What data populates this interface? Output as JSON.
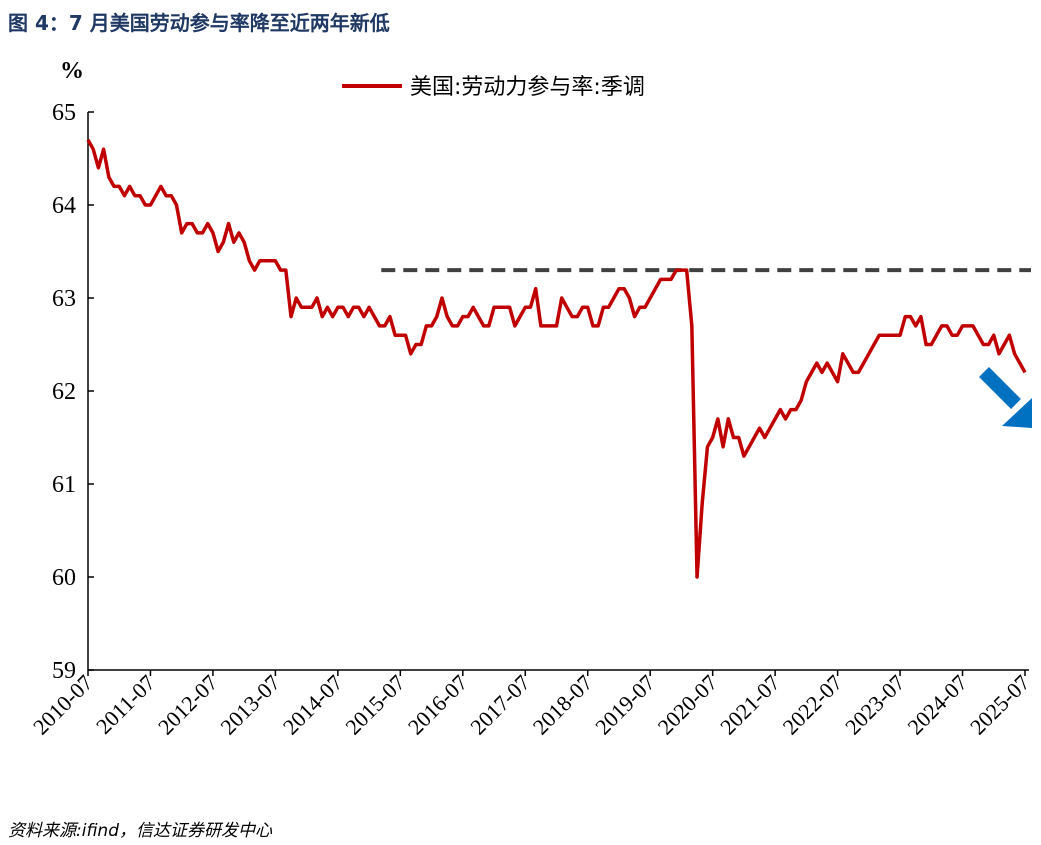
{
  "chart_data": {
    "type": "line",
    "title": "图 4：7 月美国劳动参与率降至近两年新低",
    "y_unit": "%",
    "source": "资料来源:ifind，信达证券研发中心",
    "categories": [
      "2010-07",
      null,
      null,
      null,
      null,
      null,
      null,
      null,
      null,
      null,
      null,
      null,
      "2011-07",
      null,
      null,
      null,
      null,
      null,
      null,
      null,
      null,
      null,
      null,
      null,
      "2012-07",
      null,
      null,
      null,
      null,
      null,
      null,
      null,
      null,
      null,
      null,
      null,
      "2013-07",
      null,
      null,
      null,
      null,
      null,
      null,
      null,
      null,
      null,
      null,
      null,
      "2014-07",
      null,
      null,
      null,
      null,
      null,
      null,
      null,
      null,
      null,
      null,
      null,
      "2015-07",
      null,
      null,
      null,
      null,
      null,
      null,
      null,
      null,
      null,
      null,
      null,
      "2016-07",
      null,
      null,
      null,
      null,
      null,
      null,
      null,
      null,
      null,
      null,
      null,
      "2017-07",
      null,
      null,
      null,
      null,
      null,
      null,
      null,
      null,
      null,
      null,
      null,
      "2018-07",
      null,
      null,
      null,
      null,
      null,
      null,
      null,
      null,
      null,
      null,
      null,
      "2019-07",
      null,
      null,
      null,
      null,
      null,
      null,
      null,
      null,
      null,
      null,
      null,
      "2020-07",
      null,
      null,
      null,
      null,
      null,
      null,
      null,
      null,
      null,
      null,
      null,
      "2021-07",
      null,
      null,
      null,
      null,
      null,
      null,
      null,
      null,
      null,
      null,
      null,
      "2022-07",
      null,
      null,
      null,
      null,
      null,
      null,
      null,
      null,
      null,
      null,
      null,
      "2023-07",
      null,
      null,
      null,
      null,
      null,
      null,
      null,
      null,
      null,
      null,
      null,
      "2024-07",
      null,
      null,
      null,
      null,
      null,
      null,
      null,
      null,
      null,
      null,
      null,
      "2025-07"
    ],
    "series": [
      {
        "name": "美国:劳动力参与率:季调",
        "color": "#c00000",
        "values": [
          64.7,
          64.6,
          64.4,
          64.6,
          64.3,
          64.2,
          64.2,
          64.1,
          64.2,
          64.1,
          64.1,
          64.0,
          64.0,
          64.1,
          64.2,
          64.1,
          64.1,
          64.0,
          63.7,
          63.8,
          63.8,
          63.7,
          63.7,
          63.8,
          63.7,
          63.5,
          63.6,
          63.8,
          63.6,
          63.7,
          63.6,
          63.4,
          63.3,
          63.4,
          63.4,
          63.4,
          63.4,
          63.3,
          63.3,
          62.8,
          63.0,
          62.9,
          62.9,
          62.9,
          63.0,
          62.8,
          62.9,
          62.8,
          62.9,
          62.9,
          62.8,
          62.9,
          62.9,
          62.8,
          62.9,
          62.8,
          62.7,
          62.7,
          62.8,
          62.6,
          62.6,
          62.6,
          62.4,
          62.5,
          62.5,
          62.7,
          62.7,
          62.8,
          63.0,
          62.8,
          62.7,
          62.7,
          62.8,
          62.8,
          62.9,
          62.8,
          62.7,
          62.7,
          62.9,
          62.9,
          62.9,
          62.9,
          62.7,
          62.8,
          62.9,
          62.9,
          63.1,
          62.7,
          62.7,
          62.7,
          62.7,
          63.0,
          62.9,
          62.8,
          62.8,
          62.9,
          62.9,
          62.7,
          62.7,
          62.9,
          62.9,
          63.0,
          63.1,
          63.1,
          63.0,
          62.8,
          62.9,
          62.9,
          63.0,
          63.1,
          63.2,
          63.2,
          63.2,
          63.3,
          63.3,
          63.3,
          62.7,
          60.0,
          60.8,
          61.4,
          61.5,
          61.7,
          61.4,
          61.7,
          61.5,
          61.5,
          61.3,
          61.4,
          61.5,
          61.6,
          61.5,
          61.6,
          61.7,
          61.8,
          61.7,
          61.8,
          61.8,
          61.9,
          62.1,
          62.2,
          62.3,
          62.2,
          62.3,
          62.2,
          62.1,
          62.4,
          62.3,
          62.2,
          62.2,
          62.3,
          62.4,
          62.5,
          62.6,
          62.6,
          62.6,
          62.6,
          62.6,
          62.8,
          62.8,
          62.7,
          62.8,
          62.5,
          62.5,
          62.6,
          62.7,
          62.7,
          62.6,
          62.6,
          62.7,
          62.7,
          62.7,
          62.6,
          62.5,
          62.5,
          62.6,
          62.4,
          62.5,
          62.6,
          62.4,
          62.3,
          62.2
        ]
      }
    ],
    "reference_line": {
      "value": 63.3,
      "color": "#404040",
      "style": "dashed"
    },
    "ylim": [
      59,
      65
    ],
    "yticks": [
      59,
      60,
      61,
      62,
      63,
      64,
      65
    ],
    "grid": false
  }
}
